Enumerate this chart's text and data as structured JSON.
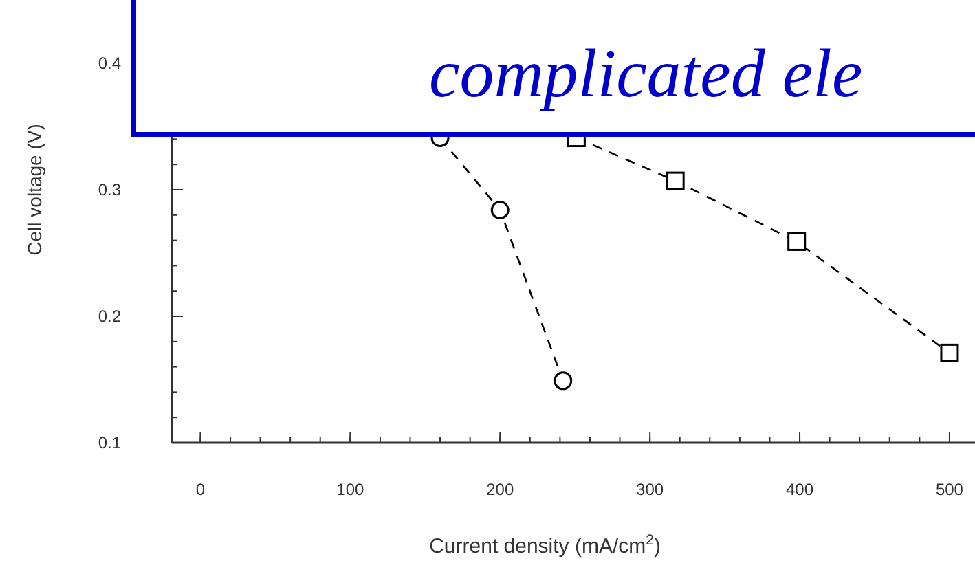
{
  "chart_data": {
    "type": "line",
    "xlabel": "Current density (mA/cm$^{2}$)",
    "ylabel": "Cell voltage (V)",
    "xlim": [
      -19,
      517
    ],
    "ylim": [
      0.1,
      0.45
    ],
    "xticks": [
      0,
      100,
      200,
      300,
      400,
      500
    ],
    "yticks": [
      0.1,
      0.2,
      0.3,
      0.4
    ],
    "grid": false,
    "line_style": "dashed",
    "series": [
      {
        "color": "#000000",
        "marker": "circle",
        "x": [
          160,
          200,
          242
        ],
        "values": [
          0.341,
          0.284,
          0.149
        ]
      },
      {
        "color": "#000000",
        "marker": "square",
        "x": [
          251,
          317,
          398,
          500
        ],
        "values": [
          0.341,
          0.307,
          0.259,
          0.171
        ]
      }
    ],
    "annotations": [
      "complicated ele"
    ]
  }
}
